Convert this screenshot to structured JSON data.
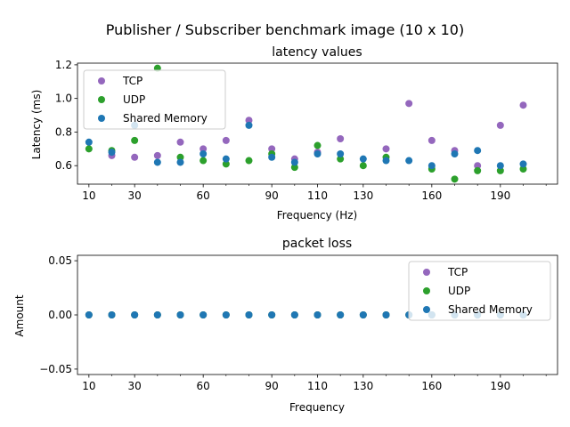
{
  "figure": {
    "suptitle": "Publisher / Subscriber benchmark image (10 x 10)"
  },
  "chart_data": [
    {
      "type": "scatter",
      "title": "latency values",
      "xlabel": "Frequency (Hz)",
      "ylabel": "Latency (ms)",
      "xlim": [
        5,
        215
      ],
      "ylim": [
        0.49,
        1.21
      ],
      "xticks": [
        10,
        30,
        60,
        90,
        110,
        130,
        160,
        190
      ],
      "xtick_labels": [
        "10",
        "30",
        "60",
        "90",
        "110",
        "130",
        "160",
        "190"
      ],
      "xminor_ticks": [
        20,
        40,
        50,
        70,
        80,
        100,
        120,
        140,
        150,
        170,
        180,
        200,
        210
      ],
      "yticks": [
        0.6,
        0.8,
        1.0,
        1.2
      ],
      "ytick_labels": [
        "0.6",
        "0.8",
        "1.0",
        "1.2"
      ],
      "x": [
        10,
        20,
        30,
        40,
        50,
        60,
        70,
        80,
        90,
        100,
        110,
        120,
        130,
        140,
        150,
        160,
        170,
        180,
        190,
        200,
        210
      ],
      "legend_position": "upper-left",
      "grid": false,
      "series": [
        {
          "name": "TCP",
          "color": "#9467bd",
          "x": [
            20,
            30,
            40,
            50,
            60,
            70,
            80,
            90,
            100,
            110,
            120,
            140,
            150,
            160,
            170,
            180,
            190,
            200
          ],
          "values": [
            0.66,
            0.65,
            0.66,
            0.74,
            0.7,
            0.75,
            0.87,
            0.7,
            0.64,
            0.68,
            0.76,
            0.7,
            0.97,
            0.75,
            0.69,
            0.6,
            0.84,
            0.96
          ]
        },
        {
          "name": "UDP",
          "color": "#2ca02c",
          "x": [
            10,
            20,
            30,
            40,
            50,
            60,
            70,
            80,
            90,
            100,
            110,
            120,
            130,
            140,
            160,
            170,
            180,
            190,
            200
          ],
          "values": [
            0.7,
            0.69,
            0.75,
            1.18,
            0.65,
            0.63,
            0.61,
            0.63,
            0.67,
            0.59,
            0.72,
            0.64,
            0.6,
            0.65,
            0.58,
            0.52,
            0.57,
            0.57,
            0.58
          ]
        },
        {
          "name": "Shared Memory",
          "color": "#1f77b4",
          "x": [
            10,
            20,
            30,
            40,
            50,
            60,
            70,
            80,
            90,
            100,
            110,
            120,
            130,
            140,
            150,
            160,
            170,
            180,
            190,
            200
          ],
          "values": [
            0.74,
            0.68,
            0.84,
            0.62,
            0.62,
            0.67,
            0.64,
            0.84,
            0.65,
            0.62,
            0.67,
            0.67,
            0.64,
            0.63,
            0.63,
            0.6,
            0.67,
            0.69,
            0.6,
            0.61
          ]
        }
      ]
    },
    {
      "type": "scatter",
      "title": "packet loss",
      "xlabel": "Frequency",
      "ylabel": "Amount",
      "xlim": [
        5,
        215
      ],
      "ylim": [
        -0.055,
        0.055
      ],
      "xticks": [
        10,
        30,
        60,
        90,
        110,
        130,
        160,
        190
      ],
      "xtick_labels": [
        "10",
        "30",
        "60",
        "90",
        "110",
        "130",
        "160",
        "190"
      ],
      "xminor_ticks": [
        20,
        40,
        50,
        70,
        80,
        100,
        120,
        140,
        150,
        170,
        180,
        200,
        210
      ],
      "yticks": [
        -0.05,
        0.0,
        0.05
      ],
      "ytick_labels": [
        "−0.05",
        "0.00",
        "0.05"
      ],
      "legend_position": "upper-right",
      "grid": false,
      "series": [
        {
          "name": "TCP",
          "color": "#9467bd",
          "x": [
            10,
            20,
            30,
            40,
            50,
            60,
            70,
            80,
            90,
            100,
            110,
            120,
            130,
            140,
            150,
            160,
            170,
            180,
            190,
            200
          ],
          "values": [
            0,
            0,
            0,
            0,
            0,
            0,
            0,
            0,
            0,
            0,
            0,
            0,
            0,
            0,
            0,
            0,
            0,
            0,
            0,
            0
          ]
        },
        {
          "name": "UDP",
          "color": "#2ca02c",
          "x": [
            10,
            20,
            30,
            40,
            50,
            60,
            70,
            80,
            90,
            100,
            110,
            120,
            130,
            140,
            150,
            160,
            170,
            180,
            190,
            200
          ],
          "values": [
            0,
            0,
            0,
            0,
            0,
            0,
            0,
            0,
            0,
            0,
            0,
            0,
            0,
            0,
            0,
            0,
            0,
            0,
            0,
            0
          ]
        },
        {
          "name": "Shared Memory",
          "color": "#1f77b4",
          "x": [
            10,
            20,
            30,
            40,
            50,
            60,
            70,
            80,
            90,
            100,
            110,
            120,
            130,
            140,
            150,
            160,
            170,
            180,
            190,
            200
          ],
          "values": [
            0,
            0,
            0,
            0,
            0,
            0,
            0,
            0,
            0,
            0,
            0,
            0,
            0,
            0,
            0,
            0,
            0,
            0,
            0,
            0
          ]
        }
      ]
    }
  ]
}
